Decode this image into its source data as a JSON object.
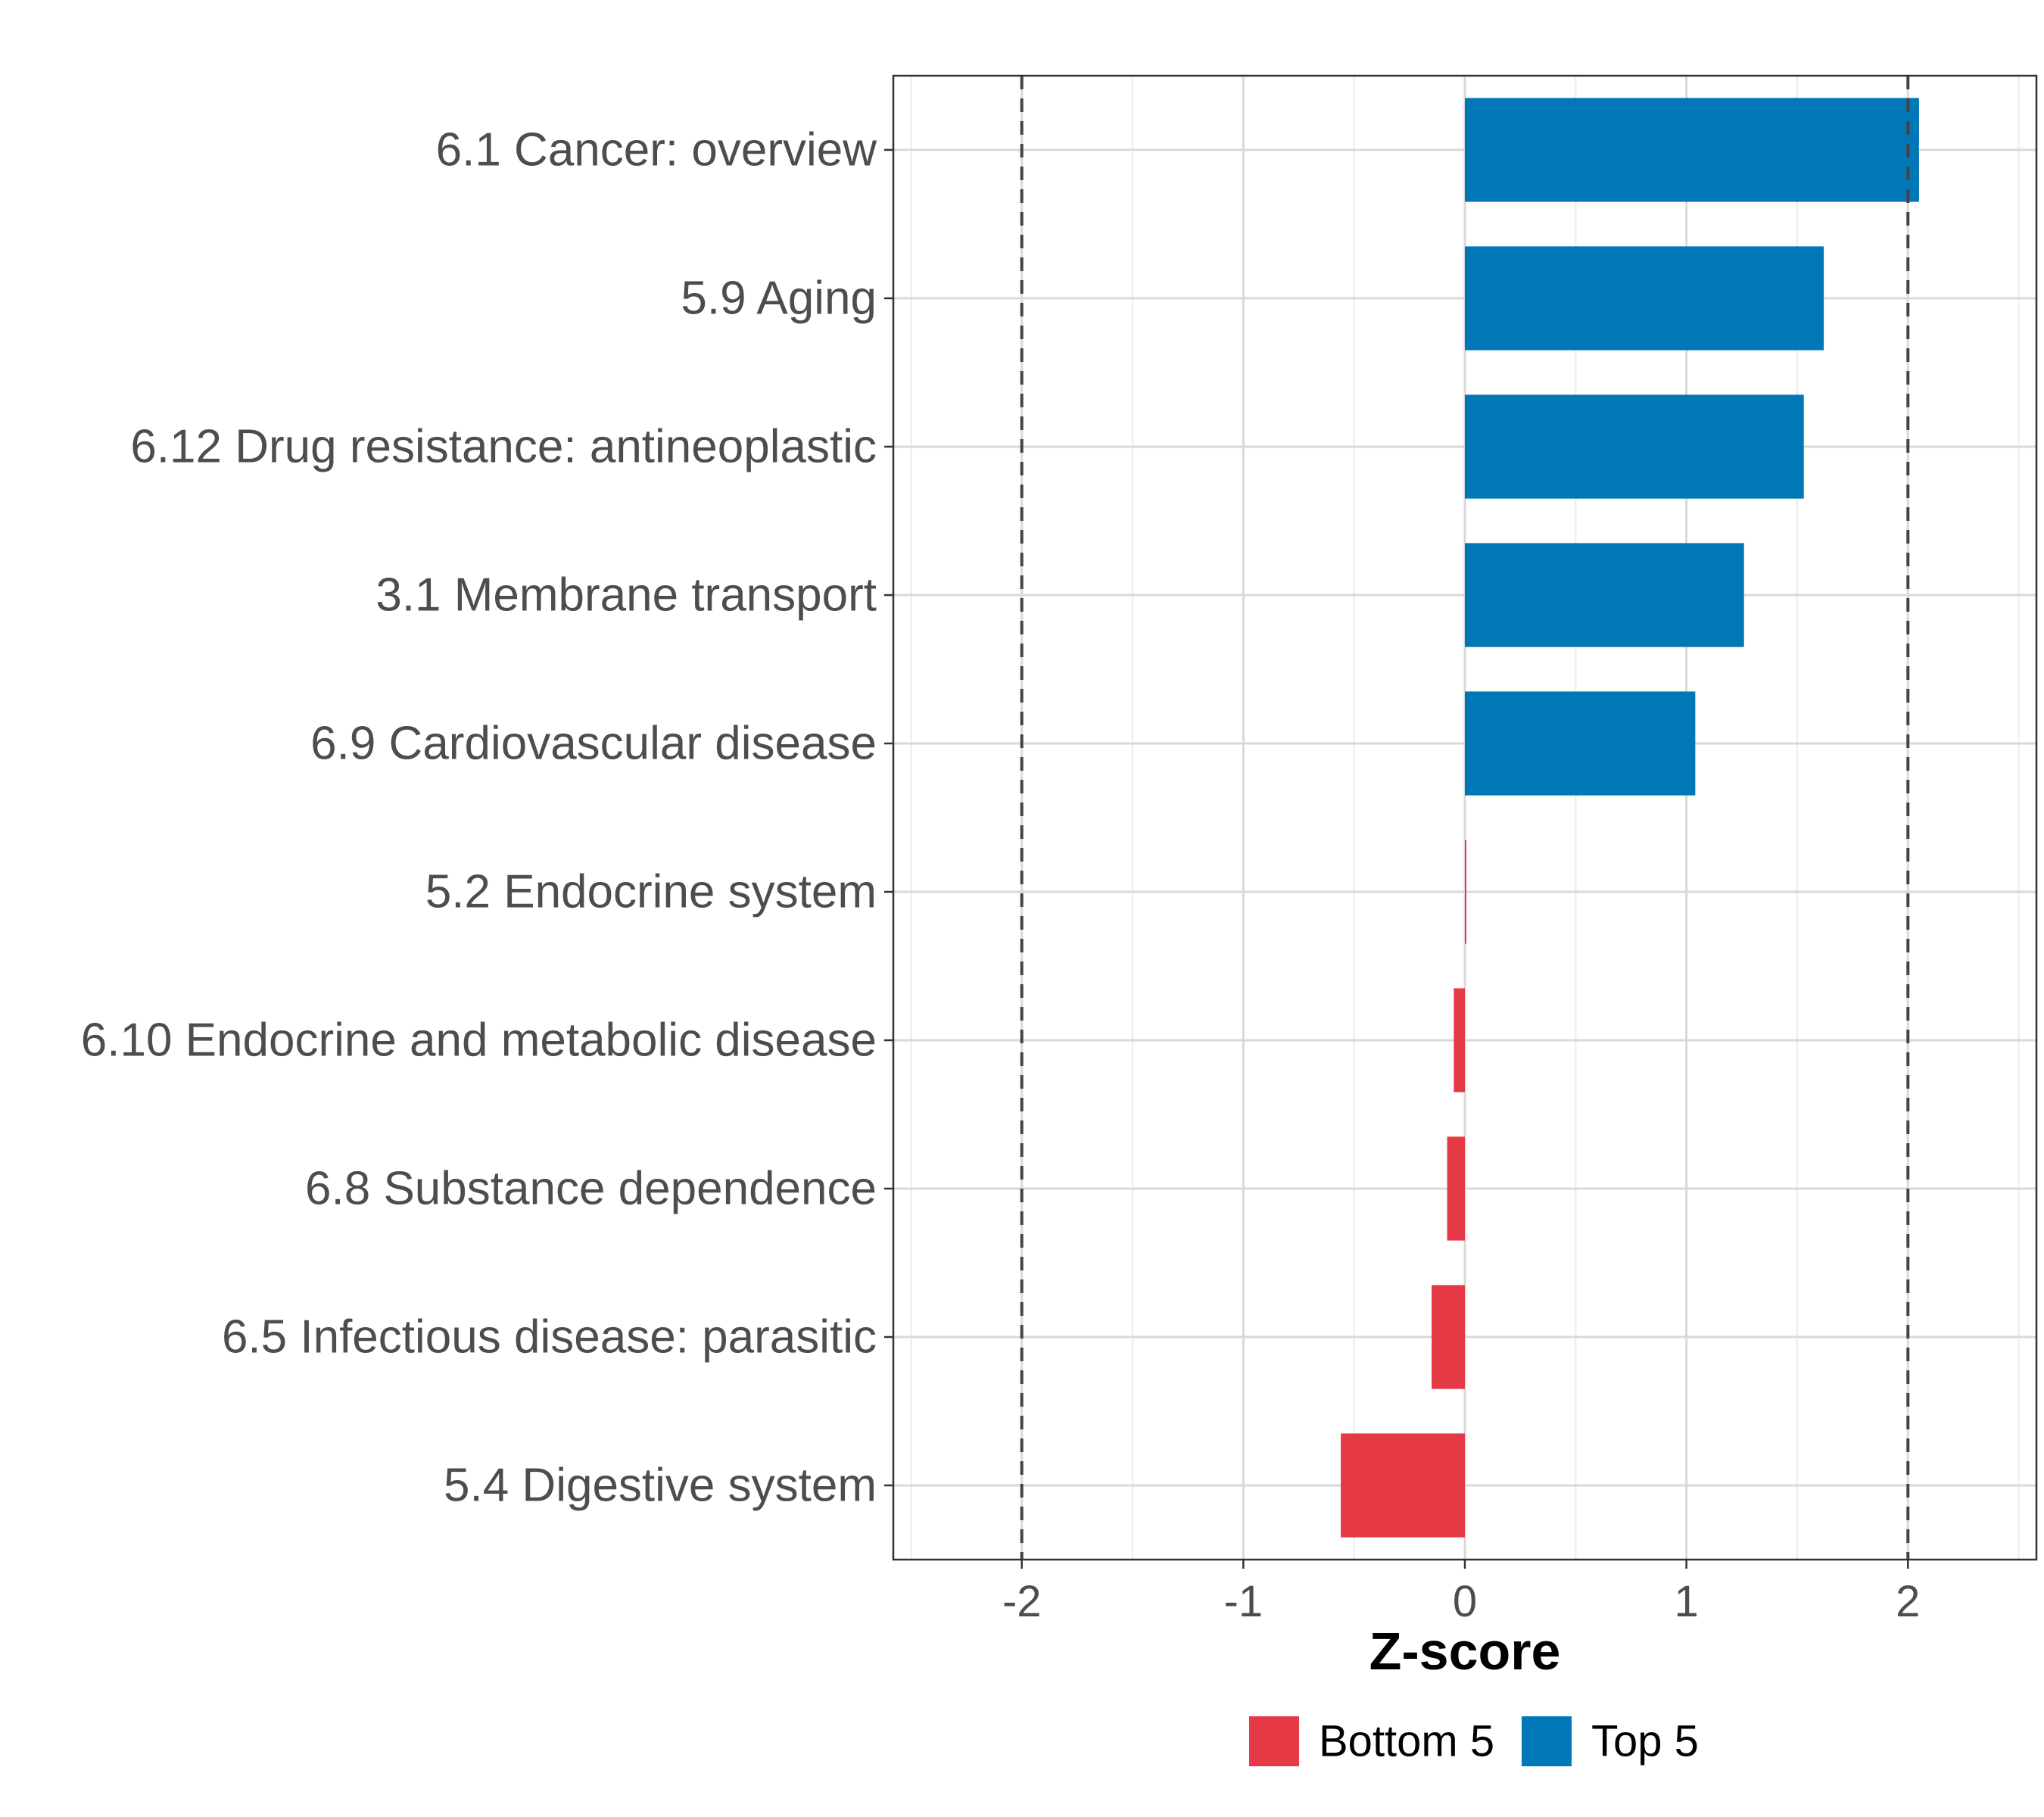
{
  "chart_data": {
    "type": "bar",
    "orientation": "horizontal",
    "xlabel": "Z-score",
    "xlim": [
      -2.58,
      2.58
    ],
    "xticks": [
      -2,
      -1,
      0,
      1,
      2
    ],
    "xtick_labels": [
      "-2",
      "-1",
      "0",
      "1",
      "2"
    ],
    "reference_lines": [
      -2,
      2
    ],
    "grid": true,
    "categories": [
      "6.1 Cancer: overview",
      "5.9 Aging",
      "6.12 Drug resistance: antineoplastic",
      "3.1 Membrane transport",
      "6.9 Cardiovascular disease",
      "5.2 Endocrine system",
      "6.10 Endocrine and metabolic disease",
      "6.8 Substance dependence",
      "6.5 Infectious disease: parasitic",
      "5.4 Digestive system"
    ],
    "values": [
      2.05,
      1.62,
      1.53,
      1.26,
      1.04,
      0.0,
      -0.05,
      -0.08,
      -0.15,
      -0.56
    ],
    "groups": [
      "Top 5",
      "Top 5",
      "Top 5",
      "Top 5",
      "Top 5",
      "Bottom 5",
      "Bottom 5",
      "Bottom 5",
      "Bottom 5",
      "Bottom 5"
    ],
    "legend": {
      "placement": "bottom",
      "entries": [
        {
          "label": "Bottom 5",
          "color": "#E63946"
        },
        {
          "label": "Top 5",
          "color": "#0077B6"
        }
      ]
    },
    "colors": {
      "Top 5": "#0077B6",
      "Bottom 5": "#E63946"
    }
  }
}
